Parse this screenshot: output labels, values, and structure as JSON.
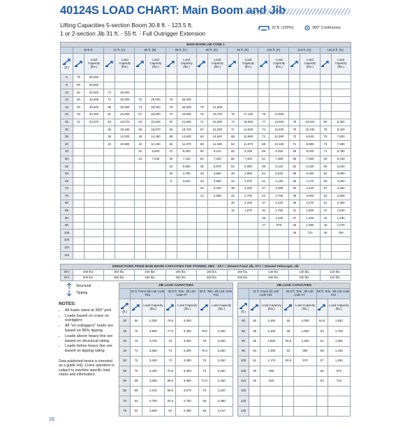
{
  "header": {
    "title": "40124S LOAD CHART: Main Boom and Jib",
    "subtitle_1": "Lifting Capacities 5-section Boom 30.8 ft. - 123.5 ft.",
    "subtitle_2": "1 or 2-section Jib 31 ft. - 55 ft. - Full Outrigger Extension",
    "outrigger": "22 ft. (100%)",
    "rotation": "360° Continuous"
  },
  "main_table": {
    "title": "MAIN BOOM LMI CODE 1",
    "radius_unit": "(ft.)",
    "capacity_label": "Load Capacity (lbs.)",
    "booms": [
      "30.8 ft.",
      "47 ft. (A)",
      "58 ft. (B)",
      "69 ft. (C)",
      "80 ft. (D)",
      "91 ft. (E)",
      "102 ft. (F)",
      "113 ft. (G)",
      "123.5 ft. (H)"
    ],
    "rows": [
      {
        "radius": "5",
        "cells": [
          "75",
          "80,000",
          null,
          null,
          null,
          null,
          null,
          null,
          null,
          null,
          null,
          null,
          null,
          null,
          null,
          null,
          null,
          null
        ]
      },
      {
        "radius": "8",
        "cells": [
          "69",
          "60,500",
          null,
          null,
          null,
          null,
          null,
          null,
          null,
          null,
          null,
          null,
          null,
          null,
          null,
          null,
          null,
          null
        ]
      },
      {
        "radius": "10",
        "cells": [
          "64",
          "52,500",
          "74",
          "25,000",
          null,
          null,
          null,
          null,
          null,
          null,
          null,
          null,
          null,
          null,
          null,
          null,
          null,
          null
        ]
      },
      {
        "radius": "12",
        "cells": [
          "60",
          "46,600",
          "72",
          "25,000",
          "76",
          "25,000",
          "79",
          "25,000",
          null,
          null,
          null,
          null,
          null,
          null,
          null,
          null,
          null,
          null
        ]
      },
      {
        "radius": "15",
        "cells": [
          "53",
          "39,600",
          "68",
          "25,000",
          "73",
          "25,000",
          "76",
          "25,000",
          "79",
          "21,500",
          null,
          null,
          null,
          null,
          null,
          null,
          null,
          null
        ]
      },
      {
        "radius": "20",
        "cells": [
          "40",
          "30,300",
          "61",
          "25,000",
          "67",
          "25,000",
          "72",
          "23,900",
          "76",
          "19,700",
          "78",
          "17,100",
          "79",
          "14,500",
          null,
          null,
          null,
          null
        ]
      },
      {
        "radius": "25",
        "cells": [
          "22",
          "23,070",
          "53",
          "23,070",
          "62",
          "22,840",
          "67",
          "21,650",
          "71",
          "18,200",
          "74",
          "15,950",
          "77",
          "13,500",
          "78",
          "10,910",
          "80",
          "8,450"
        ]
      },
      {
        "radius": "30",
        "cells": [
          null,
          null,
          "45",
          "18,430",
          "56",
          "18,670",
          "63",
          "18,720",
          "67",
          "16,250",
          "71",
          "14,530",
          "74",
          "12,620",
          "76",
          "10,430",
          "78",
          "8,150"
        ]
      },
      {
        "radius": "35",
        "cells": [
          null,
          null,
          "36",
          "14,200",
          "49",
          "14,450",
          "58",
          "14,600",
          "63",
          "14,540",
          "68",
          "12,960",
          "71",
          "11,380",
          "73",
          "9,540",
          "75",
          "7,800"
        ]
      },
      {
        "radius": "40",
        "cells": [
          null,
          null,
          "22",
          "10,860",
          "42",
          "11,190",
          "52",
          "11,370",
          "59",
          "11,490",
          "64",
          "11,570",
          "68",
          "10,160",
          "71",
          "8,680",
          "73",
          "7,280"
        ]
      },
      {
        "radius": "45",
        "cells": [
          null,
          null,
          null,
          null,
          "34",
          "8,820",
          "47",
          "9,000",
          "55",
          "9,110",
          "60",
          "9,190",
          "65",
          "9,250",
          "68",
          "8,040",
          "71",
          "6,780"
        ]
      },
      {
        "radius": "50",
        "cells": [
          null,
          null,
          null,
          null,
          "23",
          "7,030",
          "40",
          "7,230",
          "50",
          "7,340",
          "56",
          "7,420",
          "61",
          "7,480",
          "65",
          "7,260",
          "68",
          "6,160"
        ]
      },
      {
        "radius": "55",
        "cells": [
          null,
          null,
          null,
          null,
          null,
          null,
          "34",
          "5,950",
          "45",
          "5,970",
          "52",
          "6,050",
          "58",
          "6,110",
          "62",
          "6,150",
          "65",
          "5,640"
        ]
      },
      {
        "radius": "60",
        "cells": [
          null,
          null,
          null,
          null,
          null,
          null,
          "24",
          "4,750",
          "39",
          "4,880",
          "48",
          "4,960",
          "54",
          "5,020",
          "59",
          "5,060",
          "62",
          "5,000"
        ]
      },
      {
        "radius": "65",
        "cells": [
          null,
          null,
          null,
          null,
          null,
          null,
          "6",
          "3,810",
          "33",
          "3,980",
          "43",
          "4,070",
          "51",
          "4,130",
          "56",
          "4,170",
          "59",
          "4,200"
        ]
      },
      {
        "radius": "70",
        "cells": [
          null,
          null,
          null,
          null,
          null,
          null,
          null,
          null,
          "25",
          "3,230",
          "38",
          "3,330",
          "47",
          "3,390",
          "53",
          "3,430",
          "57",
          "3,460"
        ]
      },
      {
        "radius": "75",
        "cells": [
          null,
          null,
          null,
          null,
          null,
          null,
          null,
          null,
          "12",
          "2,580",
          "32",
          "2,700",
          "42",
          "2,760",
          "49",
          "2,800",
          "54",
          "2,830"
        ]
      },
      {
        "radius": "80",
        "cells": [
          null,
          null,
          null,
          null,
          null,
          null,
          null,
          null,
          null,
          null,
          "25",
          "2,150",
          "37",
          "2,220",
          "45",
          "2,270",
          "51",
          "2,300"
        ]
      },
      {
        "radius": "85",
        "cells": [
          null,
          null,
          null,
          null,
          null,
          null,
          null,
          null,
          null,
          null,
          "15",
          "1,670",
          "32",
          "1,750",
          "41",
          "1,800",
          "47",
          "1,840"
        ]
      },
      {
        "radius": "90",
        "cells": [
          null,
          null,
          null,
          null,
          null,
          null,
          null,
          null,
          null,
          null,
          null,
          null,
          "26",
          "1,340",
          "37",
          "1,400",
          "44",
          "1,430"
        ]
      },
      {
        "radius": "95",
        "cells": [
          null,
          null,
          null,
          null,
          null,
          null,
          null,
          null,
          null,
          null,
          null,
          null,
          "17",
          "970",
          "32",
          "1,050",
          "40",
          "1,070"
        ]
      },
      {
        "radius": "100",
        "cells": [
          null,
          null,
          null,
          null,
          null,
          null,
          null,
          null,
          null,
          null,
          null,
          null,
          null,
          null,
          "26",
          "710",
          "36",
          "750"
        ]
      },
      {
        "radius": "105",
        "cells": [
          null,
          null,
          null,
          null,
          null,
          null,
          null,
          null,
          null,
          null,
          null,
          null,
          null,
          null,
          null,
          null,
          null,
          null
        ]
      },
      {
        "radius": "110",
        "cells": [
          null,
          null,
          null,
          null,
          null,
          null,
          null,
          null,
          null,
          null,
          null,
          null,
          null,
          null,
          null,
          null,
          null,
          null
        ]
      },
      {
        "radius": "115",
        "cells": [
          null,
          null,
          null,
          null,
          null,
          null,
          null,
          null,
          null,
          null,
          null,
          null,
          null,
          null,
          null,
          null,
          null,
          null
        ]
      }
    ]
  },
  "deductions": {
    "title": "DEDUCTIONS FROM MAIN BOOM CAPACITIES FOR STOWED JIBS - SFJ = Stowed Fixed Jib, STJ = Stowed Telescopic Jib",
    "rows": [
      {
        "label": "SFJ",
        "values": [
          "450 lbs.",
          "300 lbs.",
          "240 lbs.",
          "200 lbs.",
          "180 lbs.",
          "160 lbs.",
          "140 lbs.",
          "130 lbs.",
          "120 lbs."
        ]
      },
      {
        "label": "STJ",
        "values": [
          "840 lbs.",
          "560 lbs.",
          "450 lbs.",
          "360 lbs.",
          "330 lbs.",
          "290 lbs.",
          "260 lbs.",
          "230 lbs.",
          "210 lbs."
        ]
      }
    ]
  },
  "legend": {
    "structural": "Structural",
    "tipping": "Tipping"
  },
  "notes": {
    "title": "NOTES:",
    "items": [
      "All loads rated at 360° pick",
      "Loads based on crane on outriggers",
      "All \"on outriggers\" loads are based on 85% tipping",
      "Loads above heavy line are based on structural rating",
      "Loads below heavy line are based on tipping rating"
    ],
    "disclaimer": "Data published herein is intended as a guide only. Crane operation is subject to machine specific load charts and information."
  },
  "jib_tables": [
    {
      "title": "JIB LOAD CAPACITIES",
      "unit": "(ft.)",
      "capacity_label": "Load Capacity (lbs.)",
      "jibs": [
        "31 ft. Fixed Jib LMI code #32",
        "30.5 ft. Tele. Jib LMI code #7",
        "55 ft. Tele. Jib LMI code #13"
      ],
      "rows": [
        {
          "label": "30",
          "cells": [
            "80",
            "4,200",
            "79.5",
            "3,300",
            null,
            null
          ]
        },
        {
          "label": "35",
          "cells": [
            "78",
            "3,850",
            "77.5",
            "3,300",
            "79.5",
            "2,450"
          ]
        },
        {
          "label": "40",
          "cells": [
            "76",
            "3,700",
            "76",
            "3,300",
            "78",
            "2,450"
          ]
        },
        {
          "label": "45",
          "cells": [
            "74",
            "3,550",
            "74",
            "3,300",
            "76.5",
            "2,450"
          ]
        },
        {
          "label": "50",
          "cells": [
            "72",
            "3,400",
            "72",
            "3,300",
            "75",
            "2,450"
          ]
        },
        {
          "label": "55",
          "cells": [
            "70",
            "3,250",
            "70.5",
            "3,300",
            "73",
            "2,450"
          ]
        },
        {
          "label": "60",
          "cells": [
            "68",
            "3,080",
            "68.5",
            "3,080",
            "71.5",
            "2,450"
          ]
        },
        {
          "label": "65",
          "cells": [
            "66",
            "2,910",
            "66.5",
            "3,070",
            "70",
            "2,420"
          ]
        },
        {
          "label": "70",
          "cells": [
            "64",
            "2,750",
            "64.5",
            "2,750",
            "68",
            "2,380"
          ]
        },
        {
          "label": "75",
          "cells": [
            "62",
            "2,600",
            "62",
            "2,380",
            "66",
            "2,110"
          ]
        }
      ]
    },
    {
      "title": "JIB LOAD CAPACITIES",
      "unit": "(ft.)",
      "capacity_label": "Load Capacity (lbs.)",
      "jibs": [
        "31 ft. Fixed Jib LMI code #32",
        "30.5 ft. Tele. Jib LMI code #7",
        "55 ft. Tele. Jib LMI code #13"
      ],
      "rows": [
        {
          "label": "80",
          "cells": [
            "60",
            "2,480",
            "60",
            "2,050",
            "64.5",
            "1,940"
          ]
        },
        {
          "label": "85",
          "cells": [
            "58",
            "2,260",
            "58",
            "1,660",
            "63",
            "1,750"
          ]
        },
        {
          "label": "90",
          "cells": [
            "55",
            "1,850",
            "55.5",
            "1,250",
            "61",
            "1,560"
          ]
        },
        {
          "label": "95",
          "cells": [
            "53",
            "1,480",
            "53",
            "890",
            "59",
            "1,440"
          ]
        },
        {
          "label": "100",
          "cells": [
            "51",
            "1,170",
            "50.5",
            "570",
            "57",
            "1,260"
          ]
        },
        {
          "label": "105",
          "cells": [
            "48",
            "880",
            null,
            null,
            "55",
            "970"
          ]
        },
        {
          "label": "110",
          "cells": [
            "45",
            "620",
            null,
            null,
            "53",
            "710"
          ]
        },
        {
          "label": "115",
          "cells": [
            null,
            null,
            null,
            null,
            null,
            null
          ]
        },
        {
          "label": "120",
          "cells": [
            null,
            null,
            null,
            null,
            null,
            null
          ]
        },
        {
          "label": "125",
          "cells": [
            null,
            null,
            null,
            null,
            null,
            null
          ]
        }
      ]
    }
  ],
  "page_number": "16"
}
